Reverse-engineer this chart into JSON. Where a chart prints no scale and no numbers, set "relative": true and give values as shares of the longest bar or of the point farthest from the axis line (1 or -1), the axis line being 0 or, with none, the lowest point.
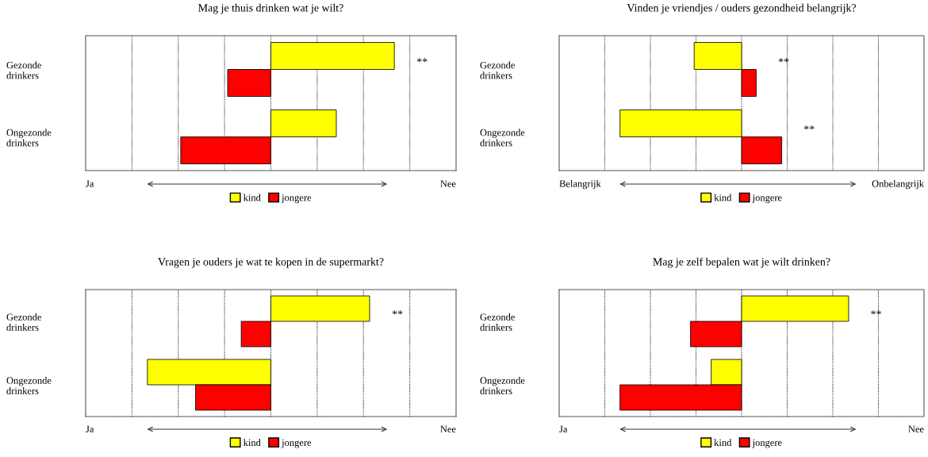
{
  "chart_data": [
    {
      "type": "bar",
      "orientation": "horizontal",
      "relative": true,
      "title": "Mag je thuis drinken wat je wilt?",
      "categories": [
        "Gezonde drinkers",
        "Ongezonde drinkers"
      ],
      "series": [
        {
          "name": "kind",
          "color": "#ffff00",
          "values": [
            1,
            0.53
          ]
        },
        {
          "name": "jongere",
          "color": "#ff0000",
          "values": [
            -0.35,
            -0.73
          ]
        }
      ],
      "annotations": [
        "Ja",
        "Nee",
        "**"
      ],
      "grid": true,
      "legend": "bottom"
    },
    {
      "type": "bar",
      "orientation": "horizontal",
      "relative": true,
      "title": "Vinden je vriendjes / ouders gezondheid belangrijk?",
      "categories": [
        "Gezonde drinkers",
        "Ongezonde drinkers"
      ],
      "series": [
        {
          "name": "kind",
          "color": "#ffff00",
          "values": [
            -0.39,
            -1
          ]
        },
        {
          "name": "jongere",
          "color": "#ff0000",
          "values": [
            0.12,
            0.33
          ]
        }
      ],
      "annotations": [
        "Belangrijk",
        "Onbelangrijk",
        "**",
        "**"
      ],
      "grid": true,
      "legend": "bottom"
    },
    {
      "type": "bar",
      "orientation": "horizontal",
      "relative": true,
      "title": "Vragen je ouders je wat te kopen in de supermarkt?",
      "categories": [
        "Gezonde drinkers",
        "Ongezonde drinkers"
      ],
      "series": [
        {
          "name": "kind",
          "color": "#ffff00",
          "values": [
            0.8,
            -1
          ]
        },
        {
          "name": "jongere",
          "color": "#ff0000",
          "values": [
            -0.24,
            -0.61
          ]
        }
      ],
      "annotations": [
        "Ja",
        "Nee",
        "**"
      ],
      "grid": true,
      "legend": "bottom"
    },
    {
      "type": "bar",
      "orientation": "horizontal",
      "relative": true,
      "title": "Mag je zelf bepalen wat je wilt drinken?",
      "categories": [
        "Gezonde drinkers",
        "Ongezonde drinkers"
      ],
      "series": [
        {
          "name": "kind",
          "color": "#ffff00",
          "values": [
            0.88,
            -0.25
          ]
        },
        {
          "name": "jongere",
          "color": "#ff0000",
          "values": [
            -0.42,
            -1
          ]
        }
      ],
      "annotations": [
        "Ja",
        "Nee",
        "**"
      ],
      "grid": true,
      "legend": "bottom"
    }
  ]
}
